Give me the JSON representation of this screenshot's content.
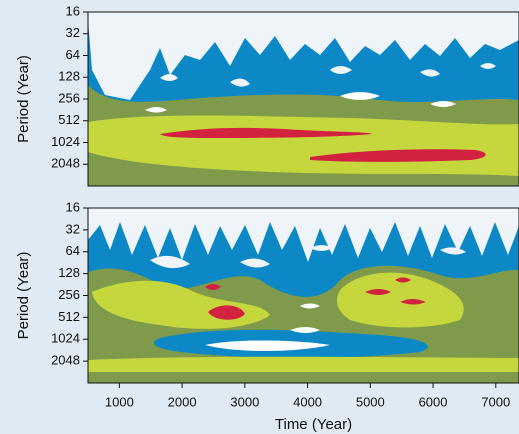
{
  "chart_data": [
    {
      "type": "contour",
      "ylabel": "Period (Year)",
      "log_scale": true,
      "xlim": [
        500,
        7370
      ],
      "ylim": [
        4096,
        16
      ],
      "yticks": [
        16,
        32,
        64,
        128,
        256,
        512,
        1024,
        2048
      ]
    },
    {
      "type": "contour",
      "ylabel": "Period (Year)",
      "xlabel": "Time (Year)",
      "log_scale": true,
      "xlim": [
        500,
        7370
      ],
      "ylim": [
        4096,
        16
      ],
      "xticks": [
        1000,
        2000,
        3000,
        4000,
        5000,
        6000,
        7000
      ],
      "yticks": [
        16,
        32,
        64,
        128,
        256,
        512,
        1024,
        2048
      ]
    }
  ]
}
